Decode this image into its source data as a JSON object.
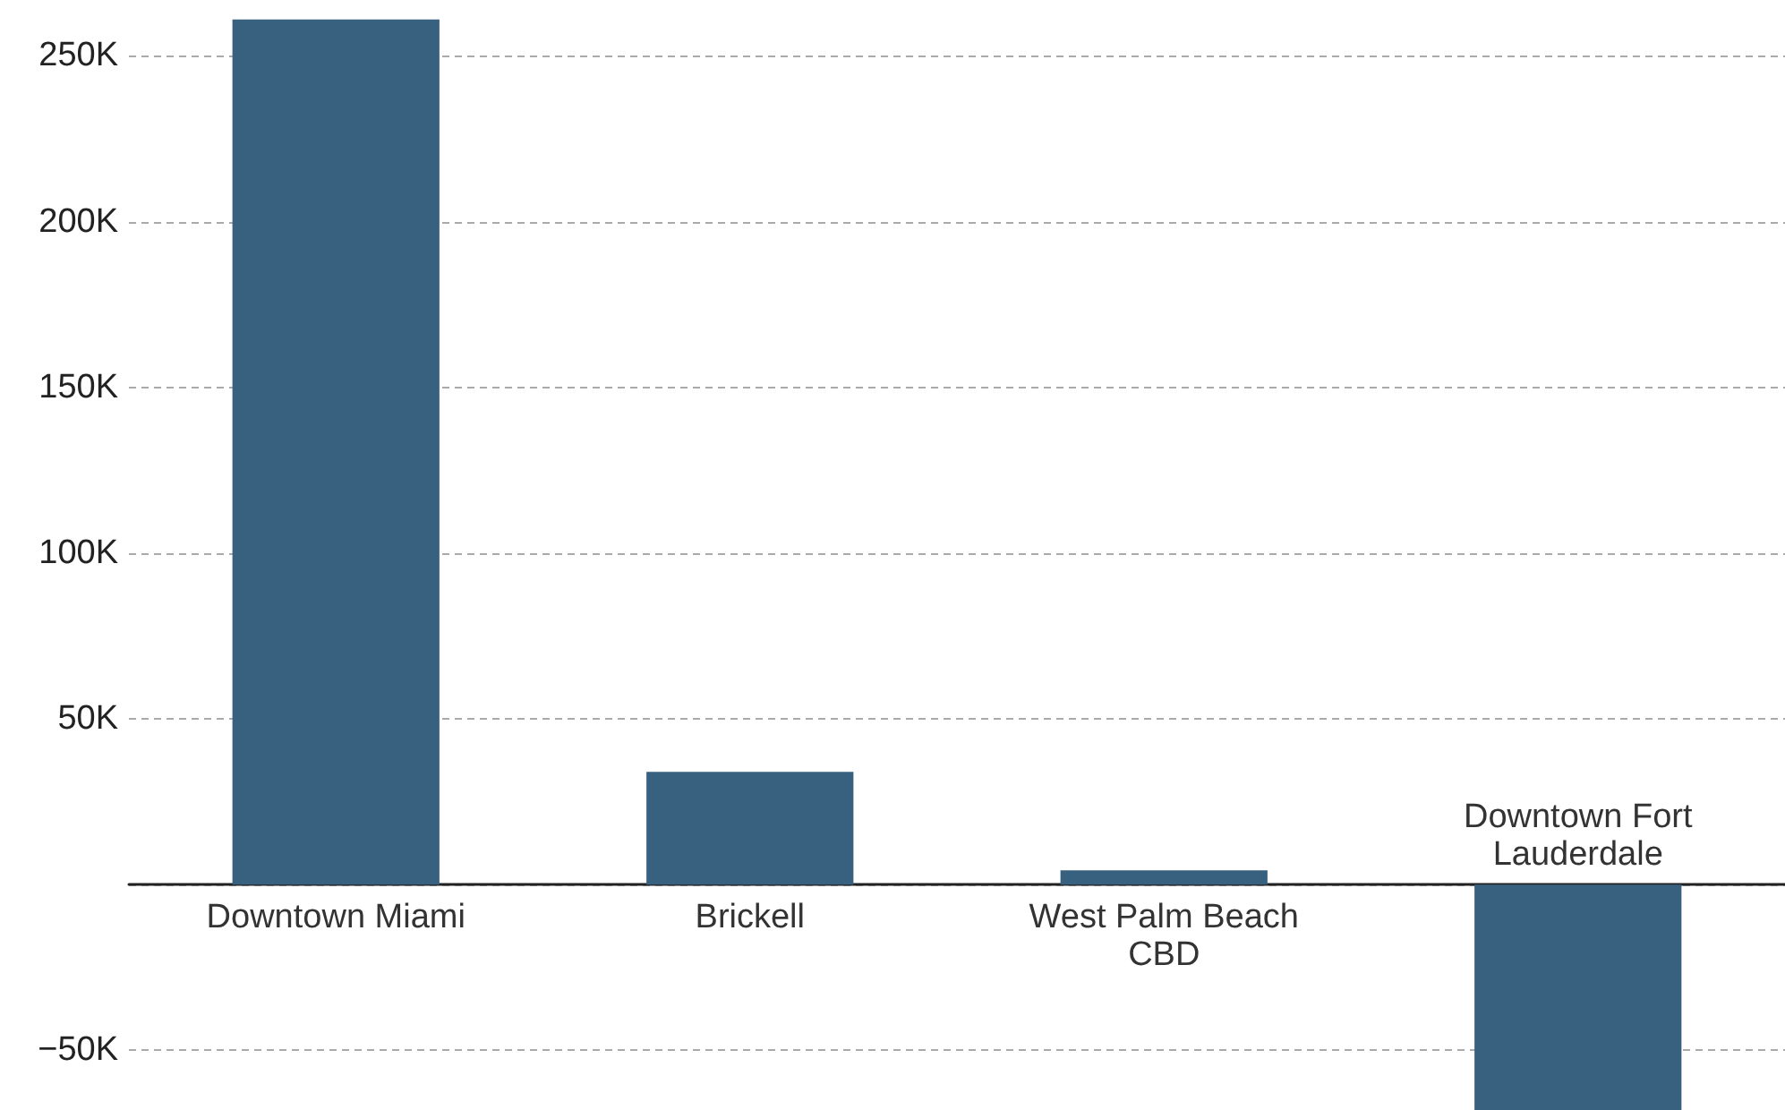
{
  "chart_data": {
    "type": "bar",
    "categories": [
      "Downtown Miami",
      "Brickell",
      "West Palm Beach\nCBD",
      "Downtown Fort\nLauderdale"
    ],
    "values": [
      261000,
      34000,
      4300,
      -68000
    ],
    "color": "#37617f",
    "ylim": [
      -68000,
      262000
    ],
    "yticks": [
      {
        "value": -50000,
        "label": "−50K"
      },
      {
        "value": 0,
        "label": null
      },
      {
        "value": 50000,
        "label": "50K"
      },
      {
        "value": 100000,
        "label": "100K"
      },
      {
        "value": 150000,
        "label": "150K"
      },
      {
        "value": 200000,
        "label": "200K"
      },
      {
        "value": 250000,
        "label": "250K"
      }
    ],
    "grid": "y"
  }
}
